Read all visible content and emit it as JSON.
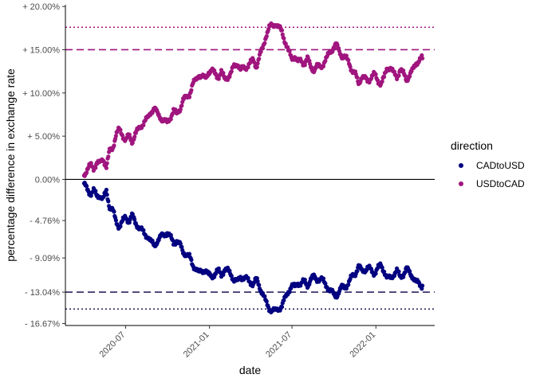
{
  "chart_data": {
    "type": "scatter",
    "xlabel": "date",
    "ylabel": "percentage difference in exchange rate",
    "xlim": [
      "2020-02-20",
      "2022-05-10"
    ],
    "ylim": [
      -16.9,
      20.2
    ],
    "x_ticks": [
      "2020-07",
      "2021-01",
      "2021-07",
      "2022-01"
    ],
    "x_tick_dates": [
      "2020-07-01",
      "2021-01-01",
      "2021-07-01",
      "2022-01-01"
    ],
    "y_ticks": [
      {
        "value": 20.0,
        "label": "+ 20.00%"
      },
      {
        "value": 15.0,
        "label": "+ 15.00%"
      },
      {
        "value": 10.0,
        "label": "+ 10.00%"
      },
      {
        "value": 5.0,
        "label": "+ 5.00%"
      },
      {
        "value": 0.0,
        "label": "0.00%"
      },
      {
        "value": -4.76,
        "label": "- 4.76%"
      },
      {
        "value": -9.09,
        "label": "- 9.09%"
      },
      {
        "value": -13.04,
        "label": "- 13.04%"
      },
      {
        "value": -16.67,
        "label": "- 16.67%"
      }
    ],
    "grid": false,
    "legend_title": "direction",
    "legend_position": "right",
    "reference_lines": [
      {
        "y": 0,
        "style": "solid",
        "color": "#000000"
      },
      {
        "y": 15.0,
        "style": "dashed",
        "color": "#A0157E"
      },
      {
        "y": 17.6,
        "style": "dotted",
        "color": "#A0157E"
      },
      {
        "y": -13.04,
        "style": "dashed",
        "color": "#2B2660"
      },
      {
        "y": -15.0,
        "style": "dotted",
        "color": "#2B2660"
      }
    ],
    "series": [
      {
        "name": "CADtoUSD",
        "color": "#000080",
        "points": [
          [
            "2020-04-01",
            -0.6
          ],
          [
            "2020-04-08",
            -1.2
          ],
          [
            "2020-04-15",
            -1.6
          ],
          [
            "2020-04-22",
            -1.3
          ],
          [
            "2020-04-29",
            -2.0
          ],
          [
            "2020-05-06",
            -1.8
          ],
          [
            "2020-05-13",
            -2.3
          ],
          [
            "2020-05-20",
            -1.4
          ],
          [
            "2020-05-27",
            -3.1
          ],
          [
            "2020-06-03",
            -3.6
          ],
          [
            "2020-06-10",
            -4.9
          ],
          [
            "2020-06-17",
            -5.4
          ],
          [
            "2020-06-24",
            -4.9
          ],
          [
            "2020-07-01",
            -4.4
          ],
          [
            "2020-07-08",
            -4.8
          ],
          [
            "2020-07-15",
            -4.2
          ],
          [
            "2020-07-22",
            -5.0
          ],
          [
            "2020-07-29",
            -5.4
          ],
          [
            "2020-08-05",
            -5.9
          ],
          [
            "2020-08-12",
            -6.4
          ],
          [
            "2020-08-19",
            -6.5
          ],
          [
            "2020-08-26",
            -7.3
          ],
          [
            "2020-09-02",
            -7.7
          ],
          [
            "2020-09-09",
            -7.0
          ],
          [
            "2020-09-16",
            -6.7
          ],
          [
            "2020-09-23",
            -6.4
          ],
          [
            "2020-09-30",
            -6.1
          ],
          [
            "2020-10-07",
            -6.7
          ],
          [
            "2020-10-14",
            -7.4
          ],
          [
            "2020-10-21",
            -7.0
          ],
          [
            "2020-10-28",
            -7.6
          ],
          [
            "2020-11-04",
            -8.4
          ],
          [
            "2020-11-11",
            -8.6
          ],
          [
            "2020-11-18",
            -9.0
          ],
          [
            "2020-11-25",
            -9.9
          ],
          [
            "2020-12-02",
            -10.2
          ],
          [
            "2020-12-09",
            -10.9
          ],
          [
            "2020-12-16",
            -10.6
          ],
          [
            "2020-12-23",
            -10.4
          ],
          [
            "2020-12-30",
            -11.1
          ],
          [
            "2021-01-06",
            -11.2
          ],
          [
            "2021-01-13",
            -10.9
          ],
          [
            "2021-01-20",
            -10.6
          ],
          [
            "2021-01-27",
            -11.0
          ],
          [
            "2021-02-03",
            -10.4
          ],
          [
            "2021-02-10",
            -10.6
          ],
          [
            "2021-02-17",
            -10.9
          ],
          [
            "2021-02-24",
            -11.6
          ],
          [
            "2021-03-03",
            -11.9
          ],
          [
            "2021-03-10",
            -11.2
          ],
          [
            "2021-03-17",
            -11.4
          ],
          [
            "2021-03-24",
            -11.6
          ],
          [
            "2021-03-31",
            -11.8
          ],
          [
            "2021-04-07",
            -12.1
          ],
          [
            "2021-04-14",
            -11.6
          ],
          [
            "2021-04-21",
            -12.4
          ],
          [
            "2021-04-28",
            -13.2
          ],
          [
            "2021-05-05",
            -14.3
          ],
          [
            "2021-05-12",
            -14.9
          ],
          [
            "2021-05-19",
            -15.1
          ],
          [
            "2021-05-26",
            -15.3
          ],
          [
            "2021-06-02",
            -14.9
          ],
          [
            "2021-06-09",
            -14.6
          ],
          [
            "2021-06-16",
            -13.8
          ],
          [
            "2021-06-23",
            -12.9
          ],
          [
            "2021-06-30",
            -12.3
          ],
          [
            "2021-07-07",
            -12.5
          ],
          [
            "2021-07-14",
            -11.9
          ],
          [
            "2021-07-21",
            -12.1
          ],
          [
            "2021-07-28",
            -11.8
          ],
          [
            "2021-08-04",
            -12.2
          ],
          [
            "2021-08-11",
            -11.6
          ],
          [
            "2021-08-18",
            -11.3
          ],
          [
            "2021-08-25",
            -11.5
          ],
          [
            "2021-09-01",
            -11.6
          ],
          [
            "2021-09-08",
            -11.8
          ],
          [
            "2021-09-15",
            -12.2
          ],
          [
            "2021-09-22",
            -12.9
          ],
          [
            "2021-09-29",
            -13.2
          ],
          [
            "2021-10-06",
            -13.4
          ],
          [
            "2021-10-13",
            -13.0
          ],
          [
            "2021-10-20",
            -12.4
          ],
          [
            "2021-10-27",
            -12.3
          ],
          [
            "2021-11-03",
            -12.0
          ],
          [
            "2021-11-10",
            -11.2
          ],
          [
            "2021-11-17",
            -10.8
          ],
          [
            "2021-11-24",
            -10.1
          ],
          [
            "2021-12-01",
            -10.6
          ],
          [
            "2021-12-08",
            -10.4
          ],
          [
            "2021-12-15",
            -10.2
          ],
          [
            "2021-12-22",
            -10.6
          ],
          [
            "2021-12-29",
            -10.8
          ],
          [
            "2022-01-05",
            -10.3
          ],
          [
            "2022-01-12",
            -10.0
          ],
          [
            "2022-01-19",
            -10.5
          ],
          [
            "2022-01-26",
            -11.5
          ],
          [
            "2022-02-02",
            -11.4
          ],
          [
            "2022-02-09",
            -10.9
          ],
          [
            "2022-02-16",
            -10.6
          ],
          [
            "2022-02-23",
            -11.3
          ],
          [
            "2022-03-02",
            -10.9
          ],
          [
            "2022-03-09",
            -10.4
          ],
          [
            "2022-03-16",
            -10.8
          ],
          [
            "2022-03-23",
            -11.2
          ],
          [
            "2022-03-30",
            -11.9
          ],
          [
            "2022-04-06",
            -12.1
          ],
          [
            "2022-04-13",
            -12.3
          ]
        ]
      },
      {
        "name": "USDtoCAD",
        "color": "#A0157E",
        "points": [
          [
            "2020-04-01",
            0.6
          ],
          [
            "2020-04-08",
            1.2
          ],
          [
            "2020-04-15",
            1.6
          ],
          [
            "2020-04-22",
            1.3
          ],
          [
            "2020-04-29",
            2.0
          ],
          [
            "2020-05-06",
            1.8
          ],
          [
            "2020-05-13",
            2.4
          ],
          [
            "2020-05-20",
            1.5
          ],
          [
            "2020-05-27",
            3.2
          ],
          [
            "2020-06-03",
            3.7
          ],
          [
            "2020-06-10",
            5.2
          ],
          [
            "2020-06-17",
            5.7
          ],
          [
            "2020-06-24",
            5.2
          ],
          [
            "2020-07-01",
            4.6
          ],
          [
            "2020-07-08",
            5.0
          ],
          [
            "2020-07-15",
            4.4
          ],
          [
            "2020-07-22",
            5.3
          ],
          [
            "2020-07-29",
            5.7
          ],
          [
            "2020-08-05",
            6.3
          ],
          [
            "2020-08-12",
            6.8
          ],
          [
            "2020-08-19",
            7.0
          ],
          [
            "2020-08-26",
            7.9
          ],
          [
            "2020-09-02",
            8.3
          ],
          [
            "2020-09-09",
            7.5
          ],
          [
            "2020-09-16",
            7.2
          ],
          [
            "2020-09-23",
            6.8
          ],
          [
            "2020-09-30",
            6.5
          ],
          [
            "2020-10-07",
            7.2
          ],
          [
            "2020-10-14",
            8.0
          ],
          [
            "2020-10-21",
            7.5
          ],
          [
            "2020-10-28",
            8.2
          ],
          [
            "2020-11-04",
            9.2
          ],
          [
            "2020-11-11",
            9.4
          ],
          [
            "2020-11-18",
            9.9
          ],
          [
            "2020-11-25",
            11.0
          ],
          [
            "2020-12-02",
            11.4
          ],
          [
            "2020-12-09",
            12.2
          ],
          [
            "2020-12-16",
            11.9
          ],
          [
            "2020-12-23",
            11.6
          ],
          [
            "2020-12-30",
            12.5
          ],
          [
            "2021-01-06",
            12.6
          ],
          [
            "2021-01-13",
            12.2
          ],
          [
            "2021-01-20",
            11.9
          ],
          [
            "2021-01-27",
            12.4
          ],
          [
            "2021-02-03",
            11.6
          ],
          [
            "2021-02-10",
            11.9
          ],
          [
            "2021-02-17",
            12.2
          ],
          [
            "2021-02-24",
            13.1
          ],
          [
            "2021-03-03",
            13.5
          ],
          [
            "2021-03-10",
            12.6
          ],
          [
            "2021-03-17",
            12.9
          ],
          [
            "2021-03-24",
            13.1
          ],
          [
            "2021-03-31",
            13.4
          ],
          [
            "2021-04-07",
            13.8
          ],
          [
            "2021-04-14",
            13.1
          ],
          [
            "2021-04-21",
            14.2
          ],
          [
            "2021-04-28",
            15.2
          ],
          [
            "2021-05-05",
            16.7
          ],
          [
            "2021-05-12",
            17.5
          ],
          [
            "2021-05-19",
            17.8
          ],
          [
            "2021-05-26",
            18.1
          ],
          [
            "2021-06-02",
            17.5
          ],
          [
            "2021-06-09",
            17.1
          ],
          [
            "2021-06-16",
            16.0
          ],
          [
            "2021-06-23",
            14.8
          ],
          [
            "2021-06-30",
            14.0
          ],
          [
            "2021-07-07",
            14.3
          ],
          [
            "2021-07-14",
            13.5
          ],
          [
            "2021-07-21",
            13.8
          ],
          [
            "2021-07-28",
            13.4
          ],
          [
            "2021-08-04",
            13.9
          ],
          [
            "2021-08-11",
            13.1
          ],
          [
            "2021-08-18",
            12.7
          ],
          [
            "2021-08-25",
            13.0
          ],
          [
            "2021-09-01",
            13.1
          ],
          [
            "2021-09-08",
            13.4
          ],
          [
            "2021-09-15",
            13.9
          ],
          [
            "2021-09-22",
            14.8
          ],
          [
            "2021-09-29",
            15.2
          ],
          [
            "2021-10-06",
            15.5
          ],
          [
            "2021-10-13",
            14.9
          ],
          [
            "2021-10-20",
            14.2
          ],
          [
            "2021-10-27",
            14.0
          ],
          [
            "2021-11-03",
            13.6
          ],
          [
            "2021-11-10",
            12.6
          ],
          [
            "2021-11-17",
            12.1
          ],
          [
            "2021-11-24",
            11.2
          ],
          [
            "2021-12-01",
            11.9
          ],
          [
            "2021-12-08",
            11.6
          ],
          [
            "2021-12-15",
            11.4
          ],
          [
            "2021-12-22",
            11.9
          ],
          [
            "2021-12-29",
            12.1
          ],
          [
            "2022-01-05",
            11.5
          ],
          [
            "2022-01-12",
            11.1
          ],
          [
            "2022-01-19",
            11.7
          ],
          [
            "2022-01-26",
            13.0
          ],
          [
            "2022-02-02",
            12.9
          ],
          [
            "2022-02-09",
            12.2
          ],
          [
            "2022-02-16",
            11.9
          ],
          [
            "2022-02-23",
            12.7
          ],
          [
            "2022-03-02",
            12.2
          ],
          [
            "2022-03-09",
            11.6
          ],
          [
            "2022-03-16",
            12.1
          ],
          [
            "2022-03-23",
            12.6
          ],
          [
            "2022-03-30",
            13.5
          ],
          [
            "2022-04-06",
            13.8
          ],
          [
            "2022-04-13",
            14.0
          ]
        ]
      }
    ]
  }
}
